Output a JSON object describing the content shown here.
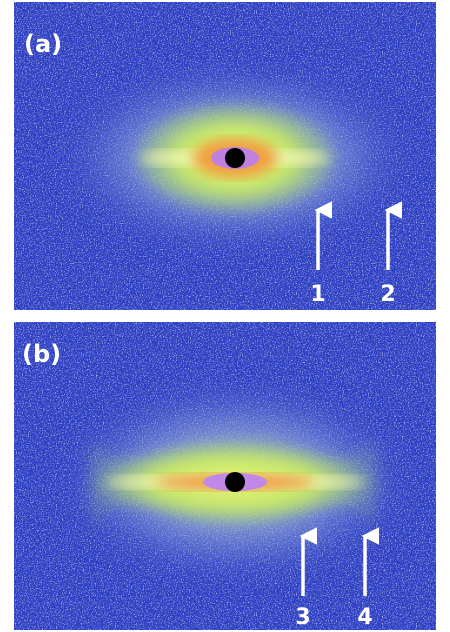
{
  "panels": [
    {
      "label": "(a)",
      "arrows": [
        "1",
        "2"
      ]
    },
    {
      "label": "(b)",
      "arrows": [
        "3",
        "4"
      ]
    }
  ]
}
